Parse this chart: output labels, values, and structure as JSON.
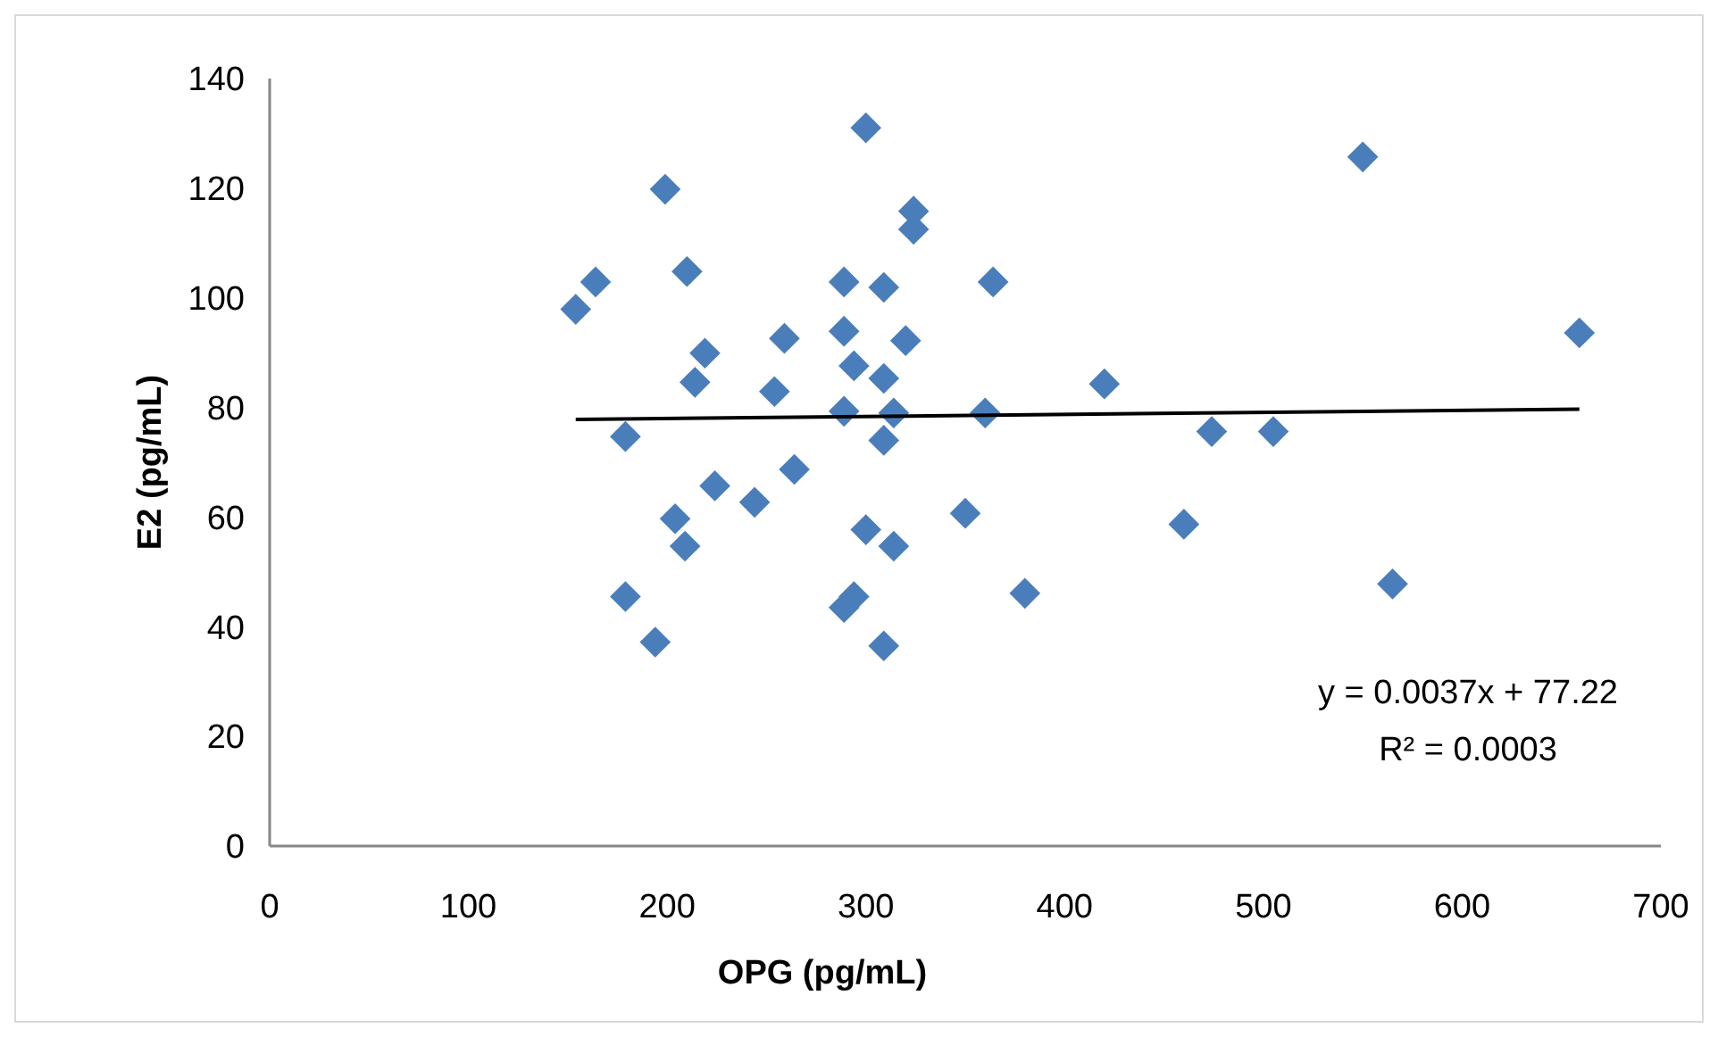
{
  "chart_data": {
    "type": "scatter",
    "xlabel": "OPG (pg/mL)",
    "ylabel": "E2 (pg/mL)",
    "xlim": [
      0,
      700
    ],
    "xticks": [
      0,
      100,
      200,
      300,
      400,
      500,
      600,
      700
    ],
    "ylim": [
      0,
      140
    ],
    "yticks": [
      0,
      20,
      40,
      60,
      80,
      100,
      120,
      140
    ],
    "grid": false,
    "marker": "diamond",
    "series": [
      {
        "color": "#4a7ebb",
        "x": [
          154,
          164,
          199,
          210,
          219,
          214,
          179,
          179,
          194,
          204,
          209,
          224,
          244,
          254,
          259,
          264,
          300,
          289,
          289,
          294,
          289,
          309,
          309,
          320,
          314,
          309,
          324,
          324,
          364,
          360,
          420,
          474,
          505,
          300,
          314,
          350,
          460,
          294,
          289,
          309,
          380,
          550,
          659,
          565
        ],
        "values": [
          97.9,
          102.9,
          119.8,
          104.8,
          89.9,
          84.6,
          74.7,
          45.5,
          37.2,
          59.7,
          54.7,
          65.7,
          62.7,
          82.9,
          92.6,
          68.7,
          131,
          102.9,
          93.9,
          87.6,
          79.3,
          101.9,
          85.3,
          92.2,
          79,
          74,
          115.8,
          112.5,
          102.9,
          79,
          84.3,
          75.6,
          75.6,
          57.7,
          54.7,
          60.7,
          58.7,
          45.5,
          43.5,
          36.5,
          46.1,
          125.7,
          93.6,
          47.8
        ]
      },
      {
        "type": "line",
        "color": "#000000",
        "marker": "none",
        "x": [
          154,
          659
        ],
        "values": [
          77.8,
          79.7
        ]
      }
    ],
    "annotations": [
      "y = 0.0037x + 77.22",
      "R² = 0.0003"
    ]
  }
}
